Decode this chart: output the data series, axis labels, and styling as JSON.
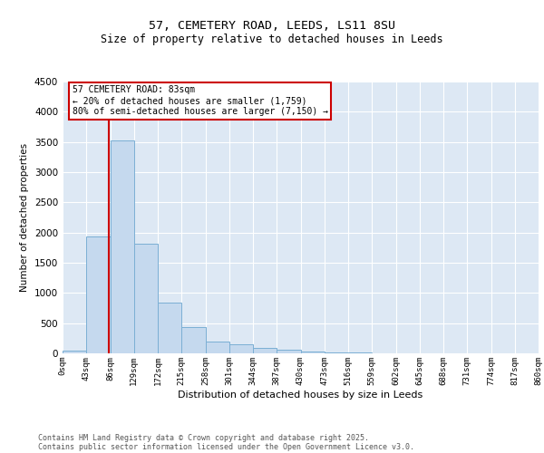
{
  "title1": "57, CEMETERY ROAD, LEEDS, LS11 8SU",
  "title2": "Size of property relative to detached houses in Leeds",
  "xlabel": "Distribution of detached houses by size in Leeds",
  "ylabel": "Number of detached properties",
  "bar_color": "#c5d9ee",
  "bar_edge_color": "#7bafd4",
  "background_color": "#dde8f4",
  "grid_color": "#ffffff",
  "annotation_box_color": "#cc0000",
  "vline_color": "#cc0000",
  "bin_edges": [
    0,
    43,
    86,
    129,
    172,
    215,
    258,
    301,
    344,
    387,
    430,
    473,
    516,
    559,
    602,
    645,
    688,
    731,
    774,
    817,
    860
  ],
  "bar_heights": [
    50,
    1940,
    3530,
    1820,
    840,
    430,
    195,
    155,
    95,
    55,
    30,
    20,
    10,
    5,
    5,
    3,
    2,
    2,
    1,
    1
  ],
  "vline_x": 83,
  "ylim": [
    0,
    4500
  ],
  "yticks": [
    0,
    500,
    1000,
    1500,
    2000,
    2500,
    3000,
    3500,
    4000,
    4500
  ],
  "annotation_text": "57 CEMETERY ROAD: 83sqm\n← 20% of detached houses are smaller (1,759)\n80% of semi-detached houses are larger (7,150) →",
  "footer_line1": "Contains HM Land Registry data © Crown copyright and database right 2025.",
  "footer_line2": "Contains public sector information licensed under the Open Government Licence v3.0.",
  "tick_labels": [
    "0sqm",
    "43sqm",
    "86sqm",
    "129sqm",
    "172sqm",
    "215sqm",
    "258sqm",
    "301sqm",
    "344sqm",
    "387sqm",
    "430sqm",
    "473sqm",
    "516sqm",
    "559sqm",
    "602sqm",
    "645sqm",
    "688sqm",
    "731sqm",
    "774sqm",
    "817sqm",
    "860sqm"
  ]
}
